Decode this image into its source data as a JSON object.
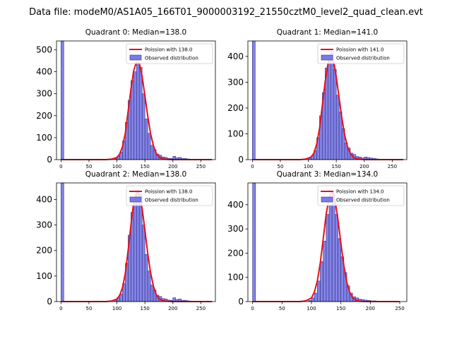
{
  "figure_title": "Data file: modeM0/AS1A05_166T01_9000003192_21550cztM0_level2_quad_clean.evt",
  "colors": {
    "bars": "#7b7be6",
    "bar_edge": "#33337a",
    "poisson": "#e8101a"
  },
  "chart_data": [
    {
      "type": "bar",
      "title": "Quadrant 0: Median=138.0",
      "median": 138.0,
      "legend": [
        "Poission with 138.0",
        "Observed distribution"
      ],
      "xlim": [
        -8,
        276
      ],
      "ylim": [
        0,
        540
      ],
      "xticks": [
        0,
        50,
        100,
        150,
        200,
        250
      ],
      "yticks": [
        0,
        100,
        200,
        300,
        400,
        500
      ],
      "bin_width": 5,
      "zero_bin": {
        "x": 0,
        "count": 540
      },
      "bins_x": [
        95,
        100,
        105,
        110,
        115,
        120,
        125,
        130,
        135,
        140,
        145,
        150,
        155,
        160,
        165,
        170,
        175,
        180,
        185,
        190,
        195,
        200,
        205,
        210,
        215,
        220,
        225,
        230,
        235,
        240
      ],
      "bins_count": [
        5,
        15,
        35,
        85,
        170,
        270,
        360,
        400,
        440,
        420,
        300,
        185,
        120,
        65,
        45,
        25,
        20,
        12,
        10,
        6,
        5,
        15,
        8,
        10,
        5,
        5,
        3,
        2,
        1,
        0
      ],
      "poisson_x": [
        0,
        80,
        90,
        100,
        105,
        110,
        115,
        120,
        125,
        130,
        135,
        140,
        145,
        150,
        155,
        160,
        165,
        170,
        175,
        180,
        185,
        190,
        200,
        210,
        270
      ],
      "poisson_y": [
        0,
        0,
        2,
        10,
        25,
        60,
        120,
        220,
        320,
        405,
        445,
        438,
        380,
        290,
        200,
        120,
        65,
        30,
        13,
        5,
        2,
        1,
        0,
        0,
        0
      ]
    },
    {
      "type": "bar",
      "title": "Quadrant 1: Median=141.0",
      "median": 141.0,
      "legend": [
        "Poission with 141.0",
        "Observed distribution"
      ],
      "xlim": [
        -8,
        276
      ],
      "ylim": [
        0,
        460
      ],
      "xticks": [
        0,
        50,
        100,
        150,
        200,
        250
      ],
      "yticks": [
        0,
        100,
        200,
        300,
        400
      ],
      "bin_width": 5,
      "zero_bin": {
        "x": 0,
        "count": 460
      },
      "bins_x": [
        100,
        105,
        110,
        115,
        120,
        125,
        130,
        135,
        140,
        145,
        150,
        155,
        160,
        165,
        170,
        175,
        180,
        185,
        190,
        195,
        200,
        205,
        210,
        215,
        220,
        225,
        230,
        235,
        240
      ],
      "bins_count": [
        5,
        15,
        35,
        85,
        170,
        260,
        355,
        400,
        420,
        350,
        250,
        185,
        120,
        65,
        45,
        25,
        20,
        12,
        10,
        6,
        10,
        8,
        6,
        5,
        3,
        2,
        1,
        0,
        0
      ],
      "poisson_x": [
        0,
        85,
        95,
        105,
        110,
        115,
        120,
        125,
        130,
        135,
        140,
        145,
        150,
        155,
        160,
        165,
        170,
        175,
        180,
        185,
        190,
        195,
        205,
        215,
        270
      ],
      "poisson_y": [
        0,
        0,
        2,
        10,
        25,
        60,
        120,
        210,
        300,
        370,
        400,
        385,
        320,
        240,
        160,
        95,
        50,
        25,
        10,
        4,
        2,
        1,
        0,
        0,
        0
      ]
    },
    {
      "type": "bar",
      "title": "Quadrant 2: Median=138.0",
      "median": 138.0,
      "legend": [
        "Poission with 138.0",
        "Observed distribution"
      ],
      "xlim": [
        -8,
        276
      ],
      "ylim": [
        0,
        465
      ],
      "xticks": [
        0,
        50,
        100,
        150,
        200,
        250
      ],
      "yticks": [
        0,
        100,
        200,
        300,
        400
      ],
      "bin_width": 5,
      "zero_bin": {
        "x": 0,
        "count": 465
      },
      "bins_x": [
        95,
        100,
        105,
        110,
        115,
        120,
        125,
        130,
        135,
        140,
        145,
        150,
        155,
        160,
        165,
        170,
        175,
        180,
        185,
        190,
        195,
        200,
        205,
        210,
        215,
        220,
        225,
        230,
        235,
        240
      ],
      "bins_count": [
        5,
        15,
        30,
        70,
        150,
        260,
        350,
        400,
        435,
        420,
        300,
        185,
        120,
        65,
        45,
        25,
        20,
        12,
        10,
        6,
        5,
        15,
        8,
        10,
        5,
        5,
        3,
        2,
        1,
        0
      ],
      "poisson_x": [
        0,
        80,
        90,
        100,
        105,
        110,
        115,
        120,
        125,
        130,
        135,
        140,
        145,
        150,
        155,
        160,
        165,
        170,
        175,
        180,
        185,
        190,
        200,
        210,
        270
      ],
      "poisson_y": [
        0,
        0,
        2,
        10,
        25,
        55,
        110,
        200,
        300,
        390,
        428,
        420,
        365,
        280,
        190,
        115,
        62,
        28,
        12,
        5,
        2,
        1,
        0,
        0,
        0
      ]
    },
    {
      "type": "bar",
      "title": "Quadrant 3: Median=134.0",
      "median": 134.0,
      "legend": [
        "Poission with 134.0",
        "Observed distribution"
      ],
      "xlim": [
        -8,
        262
      ],
      "ylim": [
        0,
        490
      ],
      "xticks": [
        0,
        50,
        100,
        150,
        200,
        250
      ],
      "yticks": [
        0,
        100,
        200,
        300,
        400
      ],
      "bin_width": 5,
      "zero_bin": {
        "x": 0,
        "count": 490
      },
      "bins_x": [
        95,
        100,
        105,
        110,
        115,
        120,
        125,
        130,
        135,
        140,
        145,
        150,
        155,
        160,
        165,
        170,
        175,
        180,
        185,
        190,
        195,
        200,
        205,
        210,
        215,
        220,
        225,
        230
      ],
      "bins_count": [
        5,
        15,
        35,
        85,
        165,
        250,
        360,
        395,
        450,
        360,
        260,
        185,
        120,
        65,
        35,
        20,
        15,
        10,
        8,
        6,
        5,
        3,
        3,
        2,
        2,
        1,
        0,
        0
      ],
      "poisson_x": [
        0,
        80,
        90,
        100,
        105,
        110,
        115,
        120,
        125,
        130,
        135,
        140,
        145,
        150,
        155,
        160,
        165,
        170,
        175,
        180,
        185,
        195,
        205,
        250
      ],
      "poisson_y": [
        0,
        0,
        3,
        15,
        40,
        85,
        160,
        260,
        360,
        430,
        455,
        420,
        340,
        240,
        150,
        80,
        38,
        16,
        6,
        2,
        1,
        0,
        0,
        0
      ]
    }
  ]
}
